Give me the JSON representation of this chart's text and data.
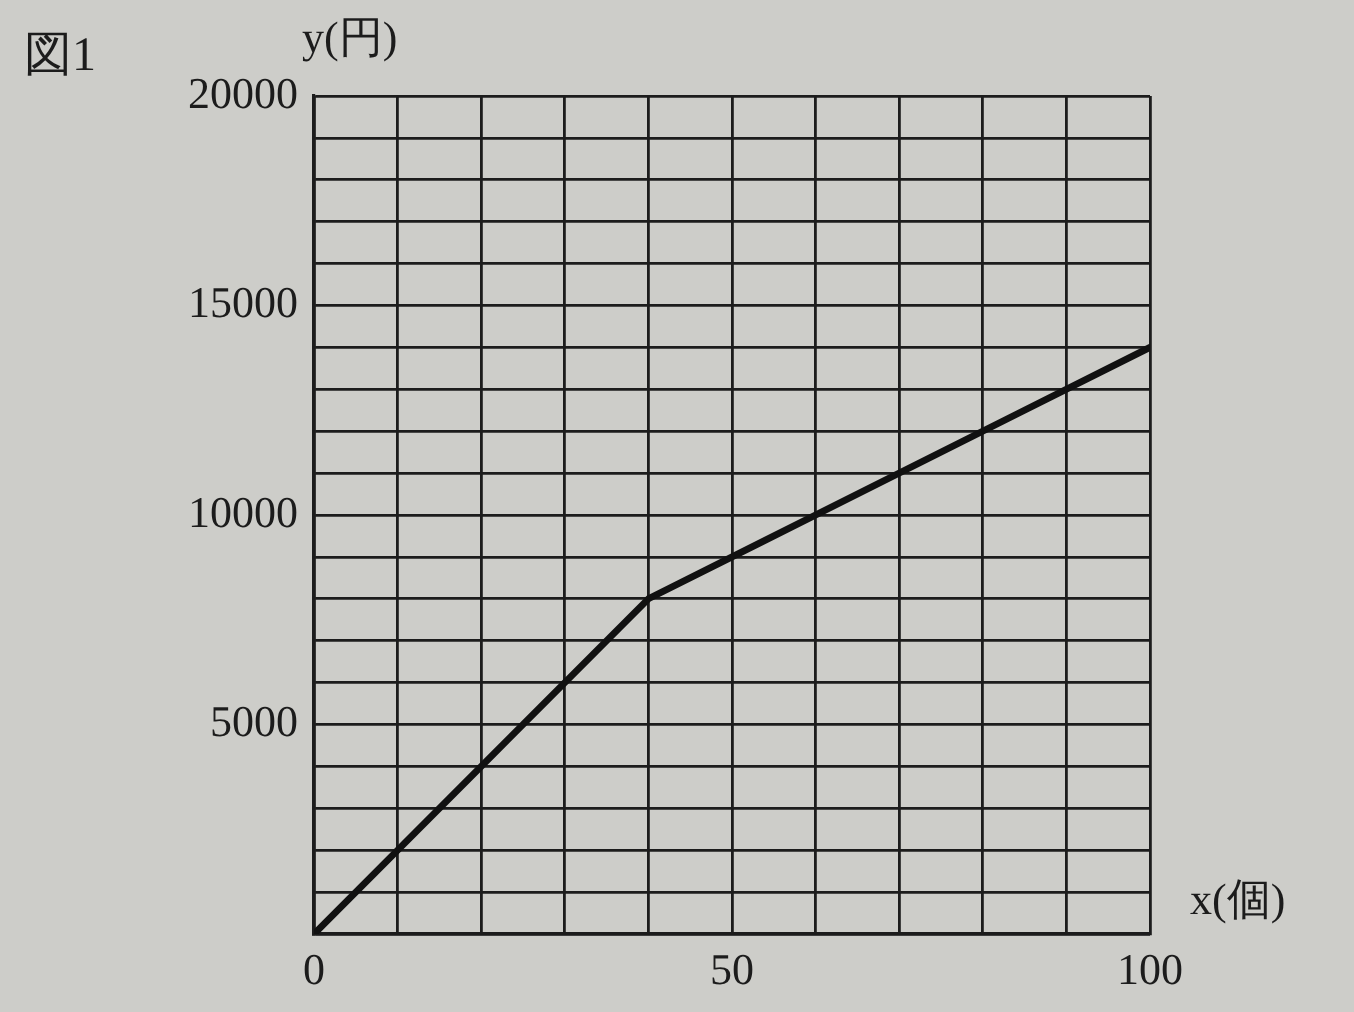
{
  "chart_data": {
    "type": "line",
    "title": "図1",
    "xlabel": "x(個)",
    "ylabel": "y(円)",
    "x": [
      0,
      40,
      100
    ],
    "series": [
      {
        "color": "#111111",
        "values": [
          0,
          8000,
          14000
        ]
      }
    ],
    "xlim": [
      0,
      100
    ],
    "ylim": [
      0,
      20000
    ],
    "xticks": [
      0,
      {
        "value": 10,
        "label": null
      },
      {
        "value": 20,
        "label": null
      },
      {
        "value": 30,
        "label": null
      },
      {
        "value": 40,
        "label": null
      },
      50,
      {
        "value": 60,
        "label": null
      },
      {
        "value": 70,
        "label": null
      },
      {
        "value": 80,
        "label": null
      },
      {
        "value": 90,
        "label": null
      },
      100
    ],
    "yticks": [
      {
        "value": 0,
        "label": null
      },
      {
        "value": 1000,
        "label": null
      },
      {
        "value": 2000,
        "label": null
      },
      {
        "value": 3000,
        "label": null
      },
      {
        "value": 4000,
        "label": null
      },
      5000,
      {
        "value": 6000,
        "label": null
      },
      {
        "value": 7000,
        "label": null
      },
      {
        "value": 8000,
        "label": null
      },
      {
        "value": 9000,
        "label": null
      },
      10000,
      {
        "value": 11000,
        "label": null
      },
      {
        "value": 12000,
        "label": null
      },
      {
        "value": 13000,
        "label": null
      },
      {
        "value": 14000,
        "label": null
      },
      15000,
      {
        "value": 16000,
        "label": null
      },
      {
        "value": 17000,
        "label": null
      },
      {
        "value": 18000,
        "label": null
      },
      {
        "value": 19000,
        "label": null
      },
      20000
    ],
    "grid": true,
    "line_style": "solid"
  }
}
